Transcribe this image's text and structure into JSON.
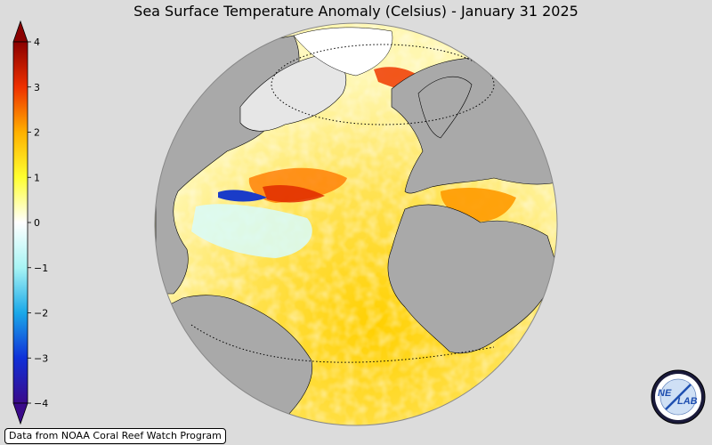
{
  "title": "Sea Surface Temperature Anomaly (Celsius) - January 31 2025",
  "colorbar": {
    "min": -4,
    "max": 4,
    "ticks": [
      {
        "value": 4,
        "label": "4"
      },
      {
        "value": 3,
        "label": "3"
      },
      {
        "value": 2,
        "label": "2"
      },
      {
        "value": 1,
        "label": "1"
      },
      {
        "value": 0,
        "label": "0"
      },
      {
        "value": -1,
        "label": "−1"
      },
      {
        "value": -2,
        "label": "−2"
      },
      {
        "value": -3,
        "label": "−3"
      },
      {
        "value": -4,
        "label": "−4"
      }
    ],
    "colors": [
      "#3a0a8a",
      "#1030d8",
      "#1aa8e8",
      "#a8f4f4",
      "#ffffff",
      "#ffff30",
      "#ffb000",
      "#ee3000",
      "#8a0000"
    ]
  },
  "credit": "Data from NOAA Coral Reef Watch Program",
  "logo": {
    "text_left": "NE",
    "text_right": "LAB"
  },
  "colors": {
    "background": "#dcdcdc",
    "land": "#a9a9a9",
    "ice": "#ffffff",
    "warm_anomaly": "#ffd800",
    "hot_anomaly": "#e03000",
    "cold_anomaly": "#1a3cc8"
  }
}
